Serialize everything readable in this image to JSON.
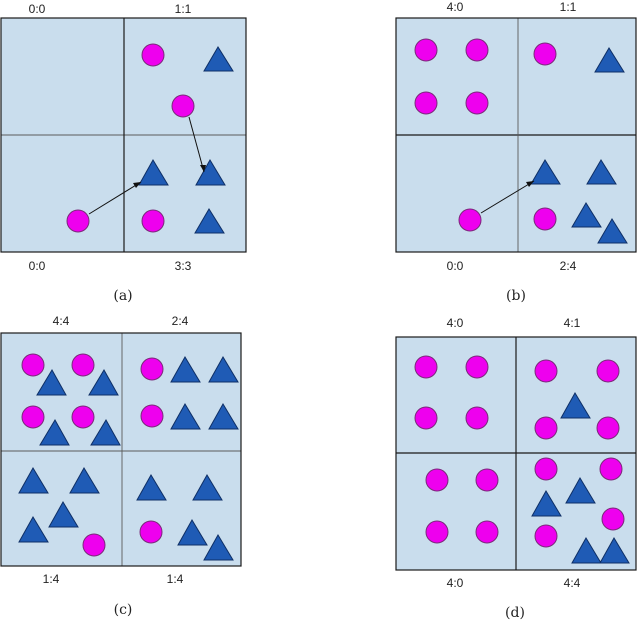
{
  "colors": {
    "background": "#c9dded",
    "circle": "#ee00ee",
    "triangle": "#1f5bb5"
  },
  "panels": [
    {
      "caption": "(a)",
      "quadrants": [
        {
          "label": "0:0",
          "shapes": []
        },
        {
          "label": "1:1",
          "shapes": [
            "circle",
            "triangle"
          ]
        },
        {
          "label": "0:0",
          "shapes": [
            "circle"
          ]
        },
        {
          "label": "3:3",
          "shapes": [
            "triangle",
            "triangle",
            "circle",
            "triangle"
          ]
        }
      ],
      "moves": 2
    },
    {
      "caption": "(b)",
      "quadrants": [
        {
          "label": "4:0",
          "shapes": [
            "circle",
            "circle",
            "circle",
            "circle"
          ]
        },
        {
          "label": "1:1",
          "shapes": [
            "circle",
            "triangle"
          ]
        },
        {
          "label": "0:0",
          "shapes": [
            "circle"
          ]
        },
        {
          "label": "2:4",
          "shapes": [
            "triangle",
            "triangle",
            "circle",
            "triangle",
            "triangle"
          ]
        }
      ],
      "moves": 1
    },
    {
      "caption": "(c)",
      "quadrants": [
        {
          "label": "4:4",
          "shapes": [
            "circle",
            "circle",
            "triangle",
            "triangle",
            "circle",
            "circle",
            "triangle",
            "triangle"
          ]
        },
        {
          "label": "2:4",
          "shapes": [
            "circle",
            "triangle",
            "triangle",
            "circle",
            "triangle",
            "triangle"
          ]
        },
        {
          "label": "1:4",
          "shapes": [
            "triangle",
            "triangle",
            "triangle",
            "triangle",
            "circle"
          ]
        },
        {
          "label": "1:4",
          "shapes": [
            "triangle",
            "triangle",
            "circle",
            "triangle",
            "triangle"
          ]
        }
      ],
      "moves": 0
    },
    {
      "caption": "(d)",
      "quadrants": [
        {
          "label": "4:0",
          "shapes": [
            "circle",
            "circle",
            "circle",
            "circle"
          ]
        },
        {
          "label": "4:1",
          "shapes": [
            "circle",
            "circle",
            "triangle",
            "circle",
            "circle"
          ]
        },
        {
          "label": "4:0",
          "shapes": [
            "circle",
            "circle",
            "circle",
            "circle"
          ]
        },
        {
          "label": "4:4",
          "shapes": [
            "circle",
            "circle",
            "triangle",
            "triangle",
            "circle",
            "circle",
            "triangle",
            "triangle"
          ]
        }
      ],
      "moves": 0
    }
  ]
}
